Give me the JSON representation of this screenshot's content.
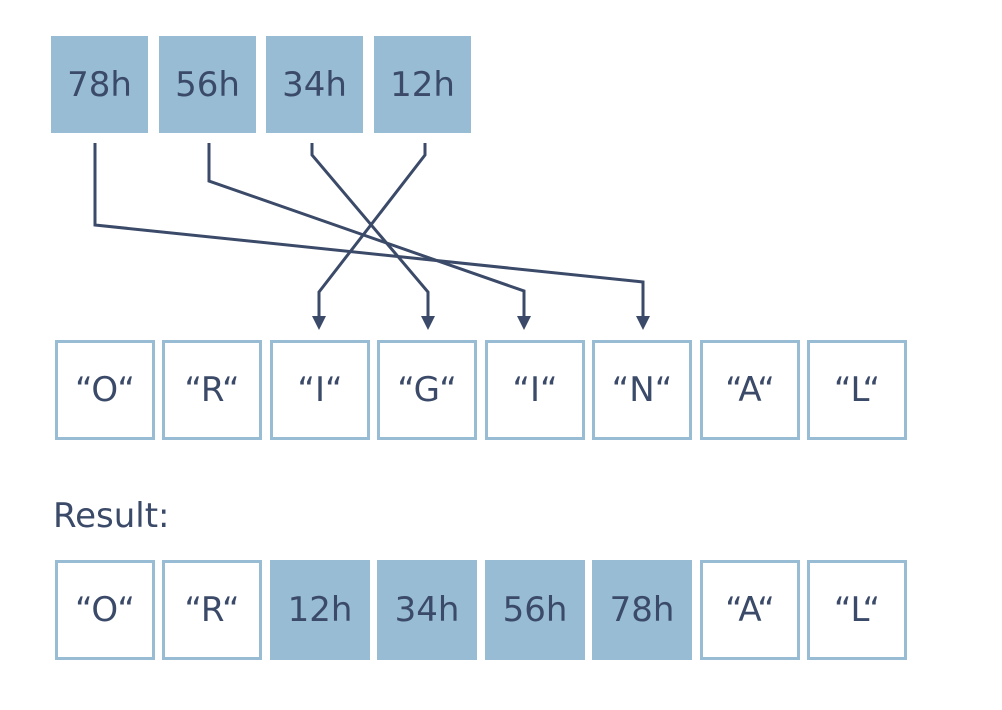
{
  "colors": {
    "filled_cell": "#97bcd4",
    "cell_border": "#97bcd4",
    "text": "#3b4a68",
    "arrow": "#3b4a68"
  },
  "source_bytes": [
    "78h",
    "56h",
    "34h",
    "12h"
  ],
  "string_cells": [
    "“O“",
    "“R“",
    "“I“",
    "“G“",
    "“I“",
    "“N“",
    "“A“",
    "“L“"
  ],
  "result_label": "Result:",
  "result_cells": [
    "“O“",
    "“R“",
    "12h",
    "34h",
    "56h",
    "78h",
    "“A“",
    "“L“"
  ],
  "result_filled": [
    false,
    false,
    true,
    true,
    true,
    true,
    false,
    false
  ],
  "mapping": [
    {
      "from": "78h",
      "to_index": 5
    },
    {
      "from": "56h",
      "to_index": 4
    },
    {
      "from": "34h",
      "to_index": 3
    },
    {
      "from": "12h",
      "to_index": 2
    }
  ]
}
